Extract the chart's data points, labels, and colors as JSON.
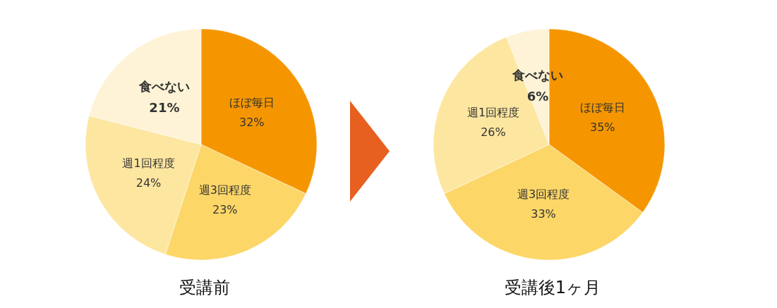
{
  "chart_data": [
    {
      "type": "pie",
      "title": "受講前",
      "categories": [
        "ほぼ毎日",
        "週3回程度",
        "週1回程度",
        "食べない"
      ],
      "values": [
        32,
        23,
        24,
        21
      ],
      "value_labels": [
        "32%",
        "23%",
        "24%",
        "21%"
      ],
      "colors": [
        "#f59600",
        "#fcd667",
        "#fde6a0",
        "#fef3d6"
      ]
    },
    {
      "type": "pie",
      "title": "受講後1ヶ月",
      "categories": [
        "ほぼ毎日",
        "週3回程度",
        "週1回程度",
        "食べない"
      ],
      "values": [
        35,
        33,
        26,
        6
      ],
      "value_labels": [
        "35%",
        "33%",
        "26%",
        "6%"
      ],
      "colors": [
        "#f59600",
        "#fcd667",
        "#fde6a0",
        "#fef3d6"
      ]
    }
  ]
}
